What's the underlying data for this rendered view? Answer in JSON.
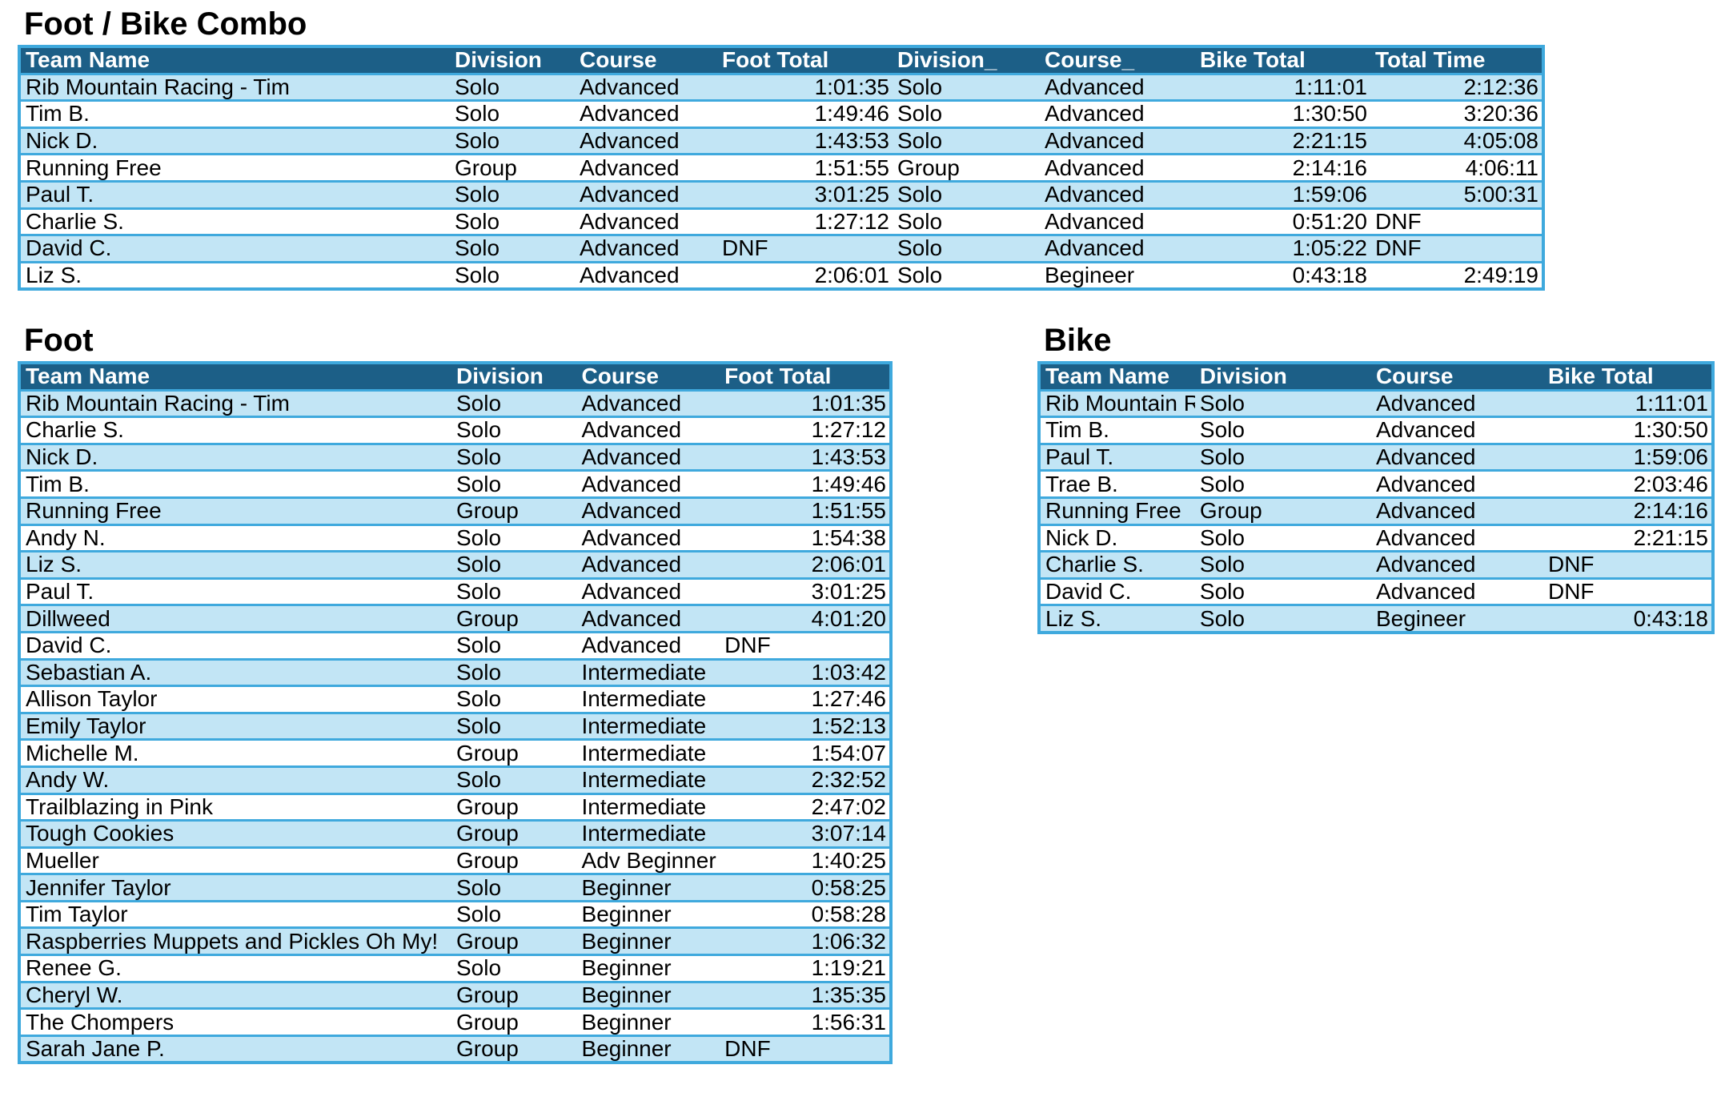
{
  "combo": {
    "title": "Foot / Bike Combo",
    "headers": [
      "Team Name",
      "Division",
      "Course",
      "Foot Total",
      "Division_",
      "Course_",
      "Bike Total",
      "Total Time"
    ],
    "rows": [
      [
        "Rib Mountain Racing - Tim",
        "Solo",
        "Advanced",
        "1:01:35",
        "Solo",
        "Advanced",
        "1:11:01",
        "2:12:36"
      ],
      [
        "Tim B.",
        "Solo",
        "Advanced",
        "1:49:46",
        "Solo",
        "Advanced",
        "1:30:50",
        "3:20:36"
      ],
      [
        "Nick D.",
        "Solo",
        "Advanced",
        "1:43:53",
        "Solo",
        "Advanced",
        "2:21:15",
        "4:05:08"
      ],
      [
        "Running Free",
        "Group",
        "Advanced",
        "1:51:55",
        "Group",
        "Advanced",
        "2:14:16",
        "4:06:11"
      ],
      [
        "Paul T.",
        "Solo",
        "Advanced",
        "3:01:25",
        "Solo",
        "Advanced",
        "1:59:06",
        "5:00:31"
      ],
      [
        "Charlie S.",
        "Solo",
        "Advanced",
        "1:27:12",
        "Solo",
        "Advanced",
        "0:51:20",
        "DNF"
      ],
      [
        "David C.",
        "Solo",
        "Advanced",
        "DNF",
        "Solo",
        "Advanced",
        "1:05:22",
        "DNF"
      ],
      [
        "Liz S.",
        "Solo",
        "Advanced",
        "2:06:01",
        "Solo",
        "Begineer",
        "0:43:18",
        "2:49:19"
      ]
    ]
  },
  "foot": {
    "title": "Foot",
    "headers": [
      "Team Name",
      "Division",
      "Course",
      "Foot Total"
    ],
    "rows": [
      [
        "Rib Mountain Racing - Tim",
        "Solo",
        "Advanced",
        "1:01:35"
      ],
      [
        "Charlie S.",
        "Solo",
        "Advanced",
        "1:27:12"
      ],
      [
        "Nick D.",
        "Solo",
        "Advanced",
        "1:43:53"
      ],
      [
        "Tim B.",
        "Solo",
        "Advanced",
        "1:49:46"
      ],
      [
        "Running Free",
        "Group",
        "Advanced",
        "1:51:55"
      ],
      [
        "Andy N.",
        "Solo",
        "Advanced",
        "1:54:38"
      ],
      [
        "Liz S.",
        "Solo",
        "Advanced",
        "2:06:01"
      ],
      [
        "Paul T.",
        "Solo",
        "Advanced",
        "3:01:25"
      ],
      [
        "Dillweed",
        "Group",
        "Advanced",
        "4:01:20"
      ],
      [
        "David C.",
        "Solo",
        "Advanced",
        "DNF"
      ],
      [
        "Sebastian A.",
        "Solo",
        "Intermediate",
        "1:03:42"
      ],
      [
        "Allison Taylor",
        "Solo",
        "Intermediate",
        "1:27:46"
      ],
      [
        "Emily Taylor",
        "Solo",
        "Intermediate",
        "1:52:13"
      ],
      [
        "Michelle M.",
        "Group",
        "Intermediate",
        "1:54:07"
      ],
      [
        "Andy W.",
        "Solo",
        "Intermediate",
        "2:32:52"
      ],
      [
        "Trailblazing in Pink",
        "Group",
        "Intermediate",
        "2:47:02"
      ],
      [
        "Tough Cookies",
        "Group",
        "Intermediate",
        "3:07:14"
      ],
      [
        "Mueller",
        "Group",
        "Adv Beginner",
        "1:40:25"
      ],
      [
        "Jennifer Taylor",
        "Solo",
        "Beginner",
        "0:58:25"
      ],
      [
        "Tim Taylor",
        "Solo",
        "Beginner",
        "0:58:28"
      ],
      [
        "Raspberries Muppets and Pickles Oh My!",
        "Group",
        "Beginner",
        "1:06:32"
      ],
      [
        "Renee G.",
        "Solo",
        "Beginner",
        "1:19:21"
      ],
      [
        "Cheryl W.",
        "Group",
        "Beginner",
        "1:35:35"
      ],
      [
        "The Chompers",
        "Group",
        "Beginner",
        "1:56:31"
      ],
      [
        "Sarah Jane P.",
        "Group",
        "Beginner",
        "DNF"
      ]
    ]
  },
  "bike": {
    "title": "Bike",
    "headers": [
      "Team Name",
      "Division",
      "Course",
      "Bike Total"
    ],
    "rows": [
      [
        "Rib Mountain R",
        "Solo",
        "Advanced",
        "1:11:01"
      ],
      [
        "Tim B.",
        "Solo",
        "Advanced",
        "1:30:50"
      ],
      [
        "Paul T.",
        "Solo",
        "Advanced",
        "1:59:06"
      ],
      [
        "Trae B.",
        "Solo",
        "Advanced",
        "2:03:46"
      ],
      [
        "Running Free",
        "Group",
        "Advanced",
        "2:14:16"
      ],
      [
        "Nick D.",
        "Solo",
        "Advanced",
        "2:21:15"
      ],
      [
        "Charlie S.",
        "Solo",
        "Advanced",
        "DNF"
      ],
      [
        "David C.",
        "Solo",
        "Advanced",
        "DNF"
      ],
      [
        "Liz S.",
        "Solo",
        "Begineer",
        "0:43:18"
      ]
    ]
  },
  "colors": {
    "header_bg": "#1c5f87",
    "band_bg": "#c2e5f5",
    "border": "#3fa9dd"
  }
}
